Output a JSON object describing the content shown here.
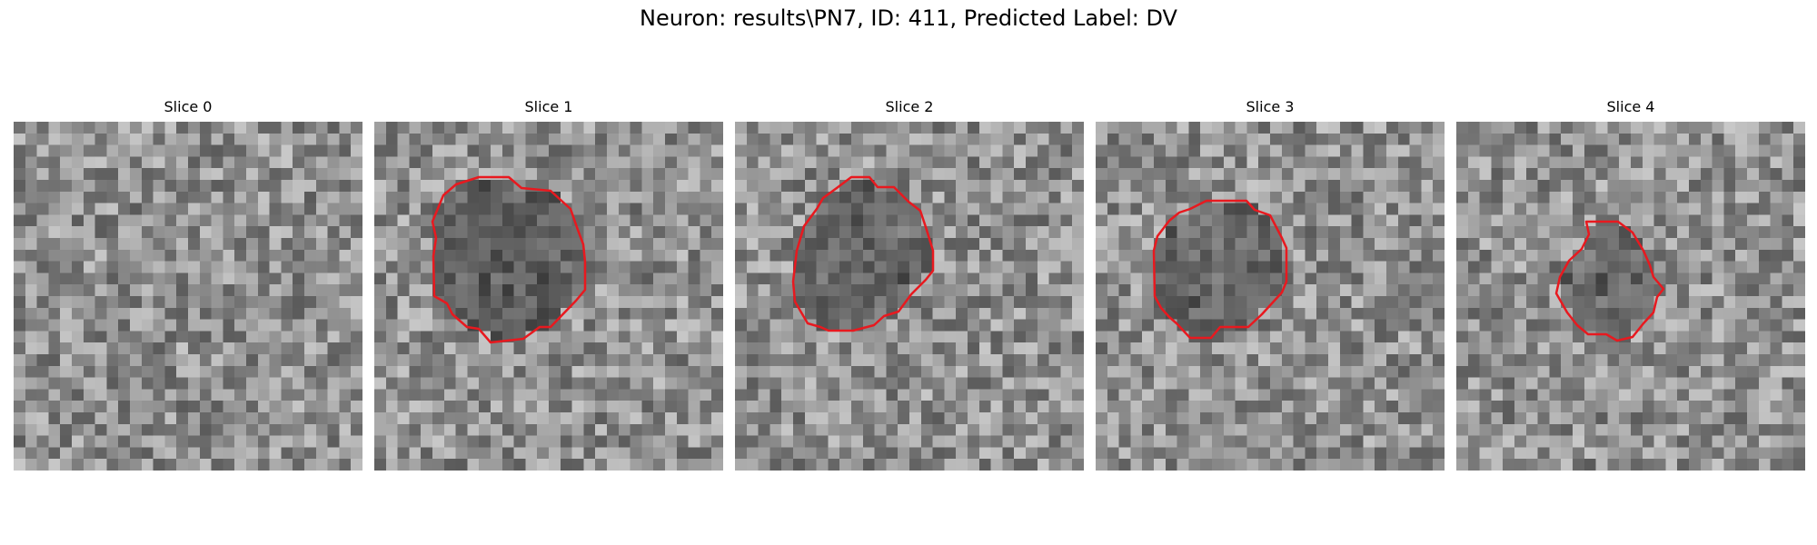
{
  "figure": {
    "title": "Neuron: results\\PN7, ID: 411, Predicted Label: DV"
  },
  "colors": {
    "contour": "#e8191f",
    "background": "#ffffff"
  },
  "panels": [
    {
      "title": "Slice 0",
      "has_contour": false,
      "center_dark": 0.0
    },
    {
      "title": "Slice 1",
      "has_contour": true,
      "center_dark": 0.55
    },
    {
      "title": "Slice 2",
      "has_contour": true,
      "center_dark": 0.5
    },
    {
      "title": "Slice 3",
      "has_contour": true,
      "center_dark": 0.5
    },
    {
      "title": "Slice 4",
      "has_contour": true,
      "center_dark": 0.45
    }
  ]
}
